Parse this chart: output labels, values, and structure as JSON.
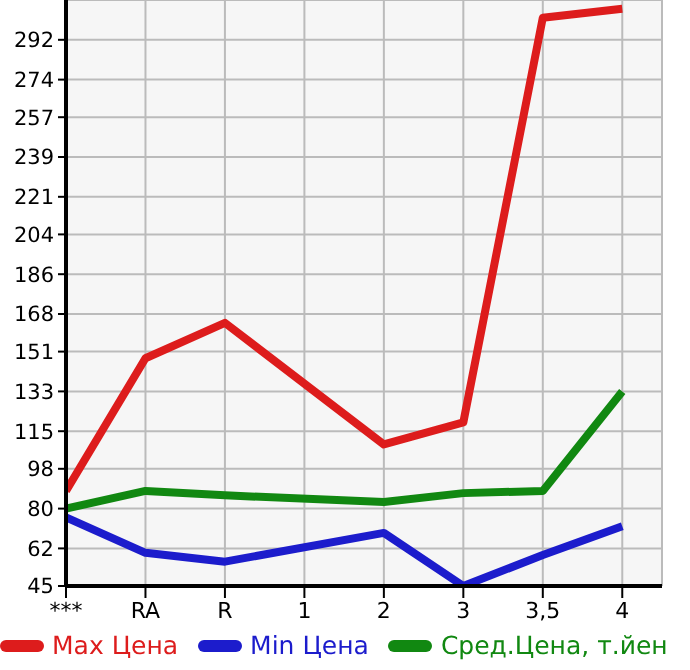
{
  "chart_data": {
    "type": "line",
    "categories": [
      "***",
      "RA",
      "R",
      "1",
      "2",
      "3",
      "3,5",
      "4"
    ],
    "series": [
      {
        "name": "Max Цена",
        "color": "#dd1c1c",
        "values": [
          88,
          148,
          164,
          null,
          109,
          119,
          302,
          306
        ]
      },
      {
        "name": "Min Цена",
        "color": "#1c1ccc",
        "values": [
          76,
          60,
          56,
          null,
          69,
          45,
          59,
          72
        ]
      },
      {
        "name": "Сред.Цена, т.йен",
        "color": "#118811",
        "values": [
          80,
          88,
          86,
          null,
          83,
          87,
          88,
          133
        ]
      }
    ],
    "ylim": [
      45,
      310
    ],
    "yticks": [
      45,
      62,
      80,
      98,
      115,
      133,
      151,
      168,
      186,
      204,
      221,
      239,
      257,
      274,
      292
    ],
    "grid": true,
    "legend": "bottom",
    "marker": "none",
    "line_style": "solid"
  }
}
